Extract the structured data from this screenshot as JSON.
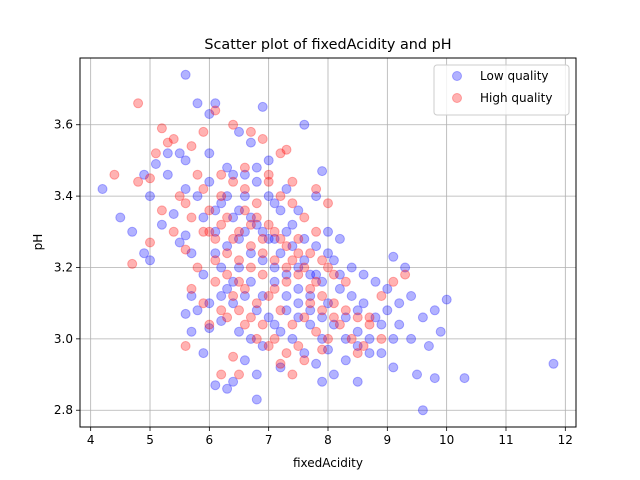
{
  "chart_data": {
    "type": "scatter",
    "title": "Scatter plot of fixedAcidity and pH",
    "xlabel": "fixedAcidity",
    "ylabel": "pH",
    "xlim": [
      3.82,
      12.18
    ],
    "ylim": [
      2.753,
      3.787
    ],
    "xticks": [
      4,
      5,
      6,
      7,
      8,
      9,
      10,
      11,
      12
    ],
    "yticks": [
      2.8,
      3.0,
      3.2,
      3.4,
      3.6
    ],
    "ytick_labels": [
      "2.8",
      "3.0",
      "3.2",
      "3.4",
      "3.6"
    ],
    "grid": true,
    "legend_placement": "upper right",
    "series": [
      {
        "name": "Low quality",
        "color": "#0000ff",
        "alpha": 0.3,
        "points": [
          [
            5.6,
            3.74
          ],
          [
            5.8,
            3.66
          ],
          [
            6.1,
            3.66
          ],
          [
            6.0,
            3.63
          ],
          [
            6.9,
            3.65
          ],
          [
            7.6,
            3.6
          ],
          [
            6.5,
            3.58
          ],
          [
            6.7,
            3.55
          ],
          [
            5.5,
            3.52
          ],
          [
            5.3,
            3.52
          ],
          [
            5.1,
            3.49
          ],
          [
            5.6,
            3.5
          ],
          [
            6.3,
            3.48
          ],
          [
            6.0,
            3.52
          ],
          [
            7.0,
            3.5
          ],
          [
            4.9,
            3.46
          ],
          [
            5.3,
            3.46
          ],
          [
            4.2,
            3.42
          ],
          [
            4.5,
            3.34
          ],
          [
            4.7,
            3.3
          ],
          [
            4.9,
            3.24
          ],
          [
            5.0,
            3.22
          ],
          [
            5.4,
            3.35
          ],
          [
            5.0,
            3.4
          ],
          [
            5.2,
            3.32
          ],
          [
            5.6,
            3.42
          ],
          [
            5.8,
            3.4
          ],
          [
            6.0,
            3.44
          ],
          [
            6.2,
            3.38
          ],
          [
            6.4,
            3.46
          ],
          [
            6.6,
            3.4
          ],
          [
            6.8,
            3.44
          ],
          [
            7.1,
            3.38
          ],
          [
            7.3,
            3.42
          ],
          [
            7.5,
            3.36
          ],
          [
            7.8,
            3.4
          ],
          [
            7.9,
            3.47
          ],
          [
            8.0,
            3.3
          ],
          [
            8.2,
            3.28
          ],
          [
            8.4,
            3.2
          ],
          [
            8.6,
            3.18
          ],
          [
            8.8,
            3.16
          ],
          [
            9.0,
            3.14
          ],
          [
            9.1,
            3.23
          ],
          [
            9.3,
            3.2
          ],
          [
            9.2,
            3.1
          ],
          [
            9.4,
            3.12
          ],
          [
            9.6,
            3.06
          ],
          [
            9.8,
            3.08
          ],
          [
            10.0,
            3.11
          ],
          [
            9.9,
            3.02
          ],
          [
            9.7,
            2.98
          ],
          [
            9.5,
            2.9
          ],
          [
            9.8,
            2.89
          ],
          [
            10.3,
            2.89
          ],
          [
            9.6,
            2.8
          ],
          [
            11.8,
            2.93
          ],
          [
            8.5,
            3.08
          ],
          [
            8.9,
            3.04
          ],
          [
            9.1,
            3.0
          ],
          [
            8.7,
            2.96
          ],
          [
            8.3,
            2.94
          ],
          [
            8.1,
            2.9
          ],
          [
            7.9,
            2.88
          ],
          [
            8.5,
            2.88
          ],
          [
            7.2,
            2.92
          ],
          [
            6.8,
            2.9
          ],
          [
            6.6,
            2.94
          ],
          [
            6.4,
            2.88
          ],
          [
            6.1,
            2.87
          ],
          [
            6.3,
            2.86
          ],
          [
            6.8,
            2.83
          ],
          [
            5.9,
            2.96
          ],
          [
            5.7,
            3.02
          ],
          [
            5.6,
            3.07
          ],
          [
            5.7,
            3.12
          ],
          [
            5.9,
            3.18
          ],
          [
            5.7,
            3.24
          ],
          [
            5.6,
            3.29
          ],
          [
            5.5,
            3.27
          ],
          [
            5.9,
            3.34
          ],
          [
            6.1,
            3.3
          ],
          [
            6.1,
            3.24
          ],
          [
            6.2,
            3.2
          ],
          [
            6.3,
            3.14
          ],
          [
            6.4,
            3.1
          ],
          [
            6.2,
            3.05
          ],
          [
            6.0,
            3.03
          ],
          [
            6.5,
            3.02
          ],
          [
            6.7,
            3.0
          ],
          [
            6.9,
            2.98
          ],
          [
            7.1,
            3.04
          ],
          [
            7.3,
            3.08
          ],
          [
            7.5,
            3.06
          ],
          [
            7.7,
            3.04
          ],
          [
            7.9,
            3.0
          ],
          [
            8.0,
            3.1
          ],
          [
            8.2,
            3.14
          ],
          [
            7.8,
            3.18
          ],
          [
            7.6,
            3.22
          ],
          [
            7.4,
            3.26
          ],
          [
            7.2,
            3.24
          ],
          [
            7.0,
            3.28
          ],
          [
            6.8,
            3.32
          ],
          [
            6.6,
            3.3
          ],
          [
            6.4,
            3.34
          ],
          [
            6.5,
            3.2
          ],
          [
            6.7,
            3.16
          ],
          [
            6.9,
            3.12
          ],
          [
            7.1,
            3.16
          ],
          [
            7.3,
            3.18
          ],
          [
            7.5,
            3.14
          ],
          [
            7.7,
            3.12
          ],
          [
            7.9,
            3.16
          ],
          [
            8.1,
            3.22
          ],
          [
            8.3,
            3.06
          ],
          [
            8.5,
            3.02
          ],
          [
            8.7,
            3.0
          ],
          [
            8.9,
            2.96
          ],
          [
            9.1,
            2.92
          ],
          [
            8.0,
            2.97
          ],
          [
            7.8,
            2.93
          ],
          [
            7.6,
            2.96
          ],
          [
            7.4,
            3.0
          ],
          [
            7.2,
            3.02
          ],
          [
            7.0,
            3.06
          ],
          [
            6.8,
            3.08
          ],
          [
            6.6,
            3.12
          ],
          [
            6.4,
            3.16
          ],
          [
            6.2,
            3.12
          ],
          [
            6.0,
            3.1
          ],
          [
            5.8,
            3.08
          ],
          [
            6.3,
            3.26
          ],
          [
            6.5,
            3.28
          ],
          [
            6.7,
            3.24
          ],
          [
            6.9,
            3.22
          ],
          [
            7.1,
            3.2
          ],
          [
            7.3,
            3.12
          ],
          [
            7.5,
            3.1
          ],
          [
            7.7,
            3.08
          ],
          [
            7.9,
            3.06
          ],
          [
            8.1,
            3.04
          ],
          [
            8.3,
            3.0
          ],
          [
            8.5,
            2.98
          ],
          [
            6.6,
            3.46
          ],
          [
            6.8,
            3.48
          ],
          [
            7.0,
            3.4
          ],
          [
            7.2,
            3.36
          ],
          [
            7.4,
            3.32
          ],
          [
            7.6,
            3.28
          ],
          [
            7.8,
            3.26
          ],
          [
            8.0,
            3.24
          ],
          [
            8.2,
            3.18
          ],
          [
            8.4,
            3.12
          ],
          [
            8.6,
            3.1
          ],
          [
            8.8,
            3.06
          ],
          [
            9.0,
            3.08
          ],
          [
            9.2,
            3.04
          ],
          [
            9.4,
            3.0
          ],
          [
            6.1,
            3.36
          ],
          [
            6.3,
            3.4
          ],
          [
            6.5,
            3.36
          ],
          [
            6.7,
            3.34
          ],
          [
            6.9,
            3.3
          ],
          [
            7.1,
            3.28
          ],
          [
            7.3,
            3.3
          ],
          [
            7.5,
            3.2
          ],
          [
            7.7,
            3.18
          ]
        ]
      },
      {
        "name": "High quality",
        "color": "#ff0000",
        "alpha": 0.3,
        "points": [
          [
            4.8,
            3.66
          ],
          [
            5.2,
            3.59
          ],
          [
            5.4,
            3.56
          ],
          [
            5.1,
            3.52
          ],
          [
            5.3,
            3.55
          ],
          [
            5.7,
            3.54
          ],
          [
            5.9,
            3.58
          ],
          [
            6.1,
            3.64
          ],
          [
            6.4,
            3.6
          ],
          [
            6.7,
            3.58
          ],
          [
            6.9,
            3.56
          ],
          [
            7.3,
            3.53
          ],
          [
            7.2,
            3.52
          ],
          [
            4.4,
            3.46
          ],
          [
            4.8,
            3.44
          ],
          [
            5.0,
            3.45
          ],
          [
            4.7,
            3.21
          ],
          [
            5.0,
            3.27
          ],
          [
            5.2,
            3.36
          ],
          [
            5.4,
            3.3
          ],
          [
            5.6,
            3.38
          ],
          [
            5.8,
            3.46
          ],
          [
            5.6,
            3.25
          ],
          [
            5.8,
            3.2
          ],
          [
            5.9,
            3.42
          ],
          [
            6.0,
            3.3
          ],
          [
            6.2,
            3.4
          ],
          [
            6.4,
            3.44
          ],
          [
            6.6,
            3.42
          ],
          [
            6.8,
            3.38
          ],
          [
            7.0,
            3.44
          ],
          [
            7.2,
            3.4
          ],
          [
            7.4,
            3.38
          ],
          [
            7.6,
            3.34
          ],
          [
            7.8,
            3.3
          ],
          [
            8.0,
            3.38
          ],
          [
            6.1,
            3.28
          ],
          [
            6.3,
            3.24
          ],
          [
            6.5,
            3.22
          ],
          [
            6.7,
            3.26
          ],
          [
            6.9,
            3.18
          ],
          [
            7.1,
            3.22
          ],
          [
            7.3,
            3.16
          ],
          [
            7.5,
            3.18
          ],
          [
            7.7,
            3.14
          ],
          [
            7.9,
            3.12
          ],
          [
            8.1,
            3.1
          ],
          [
            8.3,
            3.08
          ],
          [
            8.5,
            3.06
          ],
          [
            8.7,
            3.04
          ],
          [
            8.9,
            3.12
          ],
          [
            9.1,
            3.16
          ],
          [
            9.3,
            3.18
          ],
          [
            8.7,
            3.06
          ],
          [
            8.9,
            3.0
          ],
          [
            8.5,
            2.96
          ],
          [
            7.9,
            2.97
          ],
          [
            7.6,
            2.94
          ],
          [
            7.4,
            2.9
          ],
          [
            7.2,
            2.93
          ],
          [
            7.0,
            2.98
          ],
          [
            6.8,
            3.0
          ],
          [
            6.6,
            3.04
          ],
          [
            6.4,
            2.95
          ],
          [
            6.2,
            2.9
          ],
          [
            6.5,
            2.9
          ],
          [
            5.6,
            2.98
          ],
          [
            6.0,
            3.04
          ],
          [
            6.2,
            3.08
          ],
          [
            6.4,
            3.12
          ],
          [
            6.6,
            3.14
          ],
          [
            6.8,
            3.1
          ],
          [
            7.0,
            3.12
          ],
          [
            7.2,
            3.08
          ],
          [
            7.4,
            3.04
          ],
          [
            7.6,
            3.06
          ],
          [
            7.8,
            3.02
          ],
          [
            8.0,
            3.0
          ],
          [
            8.2,
            3.04
          ],
          [
            8.4,
            3.0
          ],
          [
            8.6,
            2.98
          ],
          [
            6.3,
            3.34
          ],
          [
            6.5,
            3.3
          ],
          [
            6.7,
            3.32
          ],
          [
            6.9,
            3.28
          ],
          [
            7.1,
            3.3
          ],
          [
            7.3,
            3.26
          ],
          [
            7.5,
            3.28
          ],
          [
            7.7,
            3.24
          ],
          [
            7.9,
            3.22
          ],
          [
            8.1,
            3.18
          ],
          [
            8.3,
            3.16
          ],
          [
            5.7,
            3.14
          ],
          [
            5.9,
            3.1
          ],
          [
            6.1,
            3.16
          ],
          [
            6.3,
            3.18
          ],
          [
            6.5,
            3.16
          ],
          [
            6.7,
            3.2
          ],
          [
            6.9,
            3.24
          ],
          [
            7.1,
            3.14
          ],
          [
            7.3,
            3.2
          ],
          [
            7.5,
            3.24
          ],
          [
            6.0,
            3.36
          ],
          [
            6.2,
            3.32
          ],
          [
            6.4,
            3.28
          ],
          [
            6.6,
            3.36
          ],
          [
            6.8,
            3.34
          ],
          [
            7.0,
            3.32
          ],
          [
            7.2,
            3.28
          ],
          [
            7.4,
            3.22
          ],
          [
            7.6,
            3.2
          ],
          [
            7.8,
            3.16
          ],
          [
            6.1,
            3.22
          ],
          [
            6.3,
            3.06
          ],
          [
            6.5,
            3.08
          ],
          [
            6.7,
            3.06
          ],
          [
            6.9,
            3.04
          ],
          [
            7.1,
            3.0
          ],
          [
            7.3,
            2.96
          ],
          [
            7.5,
            2.98
          ],
          [
            7.7,
            3.1
          ],
          [
            7.9,
            3.08
          ],
          [
            8.1,
            3.06
          ],
          [
            5.5,
            3.4
          ],
          [
            5.7,
            3.34
          ],
          [
            5.9,
            3.3
          ],
          [
            6.2,
            3.46
          ],
          [
            6.6,
            3.48
          ],
          [
            7.0,
            3.46
          ],
          [
            7.4,
            3.44
          ],
          [
            7.8,
            3.42
          ],
          [
            8.0,
            3.2
          ]
        ]
      }
    ]
  }
}
